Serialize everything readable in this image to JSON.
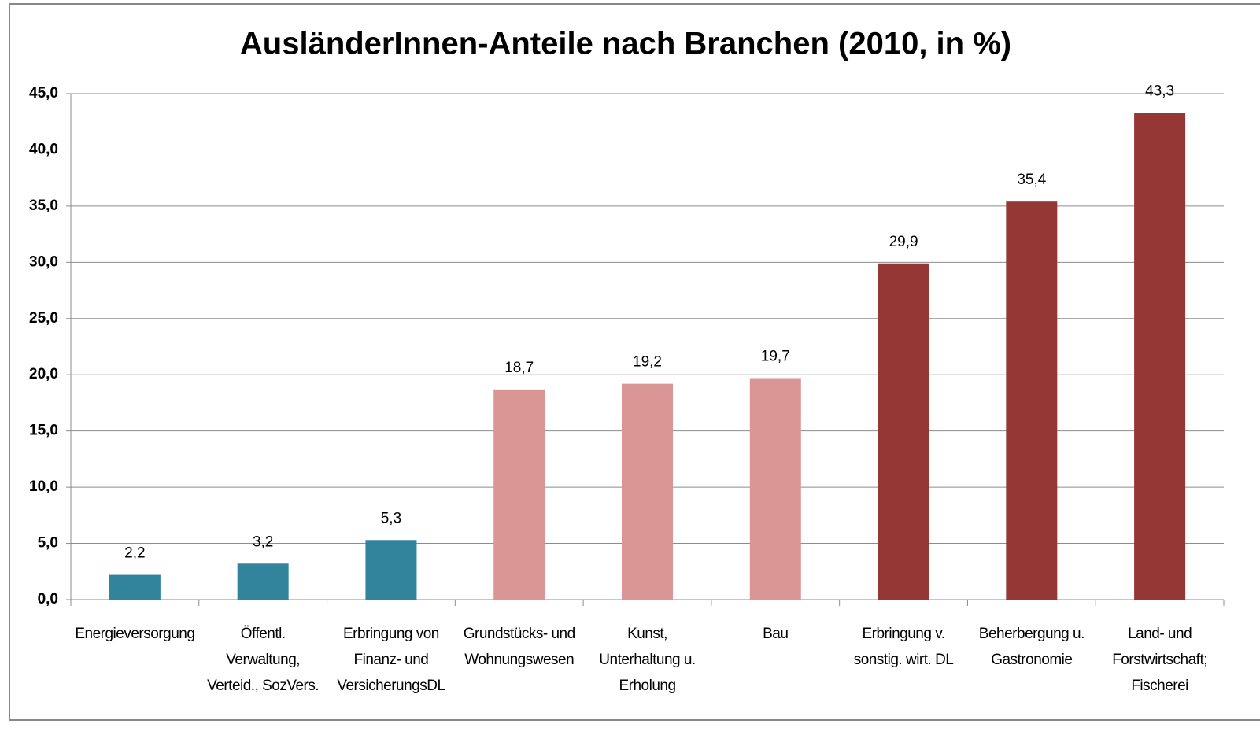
{
  "chart_data": {
    "type": "bar",
    "title": "AusländerInnen-Anteile nach Branchen (2010, in %)",
    "categories": [
      "Energieversorgung",
      "Öffentl.\nVerwaltung,\nVerteid., SozVers.",
      "Erbringung von\nFinanz- und\nVersicherungsDL",
      "Grundstücks- und\nWohnungswesen",
      "Kunst,\nUnterhaltung u.\nErholung",
      "Bau",
      "Erbringung v.\nsonstig. wirt. DL",
      "Beherbergung u.\nGastronomie",
      "Land- und\nForstwirtschaft;\nFischerei"
    ],
    "values": [
      2.2,
      3.2,
      5.3,
      18.7,
      19.2,
      19.7,
      29.9,
      35.4,
      43.3
    ],
    "value_labels": [
      "2,2",
      "3,2",
      "5,3",
      "18,7",
      "19,2",
      "19,7",
      "29,9",
      "35,4",
      "43,3"
    ],
    "colors": [
      "#31849b",
      "#31849b",
      "#31849b",
      "#d99694",
      "#d99694",
      "#d99694",
      "#953735",
      "#953735",
      "#953735"
    ],
    "ylim": [
      0,
      45
    ],
    "yticks": [
      {
        "value": 0,
        "label": "0,0"
      },
      {
        "value": 5,
        "label": "5,0"
      },
      {
        "value": 10,
        "label": "10,0"
      },
      {
        "value": 15,
        "label": "15,0"
      },
      {
        "value": 20,
        "label": "20,0"
      },
      {
        "value": 25,
        "label": "25,0"
      },
      {
        "value": 30,
        "label": "30,0"
      },
      {
        "value": 35,
        "label": "35,0"
      },
      {
        "value": 40,
        "label": "40,0"
      },
      {
        "value": 45,
        "label": "45,0"
      }
    ],
    "grid": true
  }
}
